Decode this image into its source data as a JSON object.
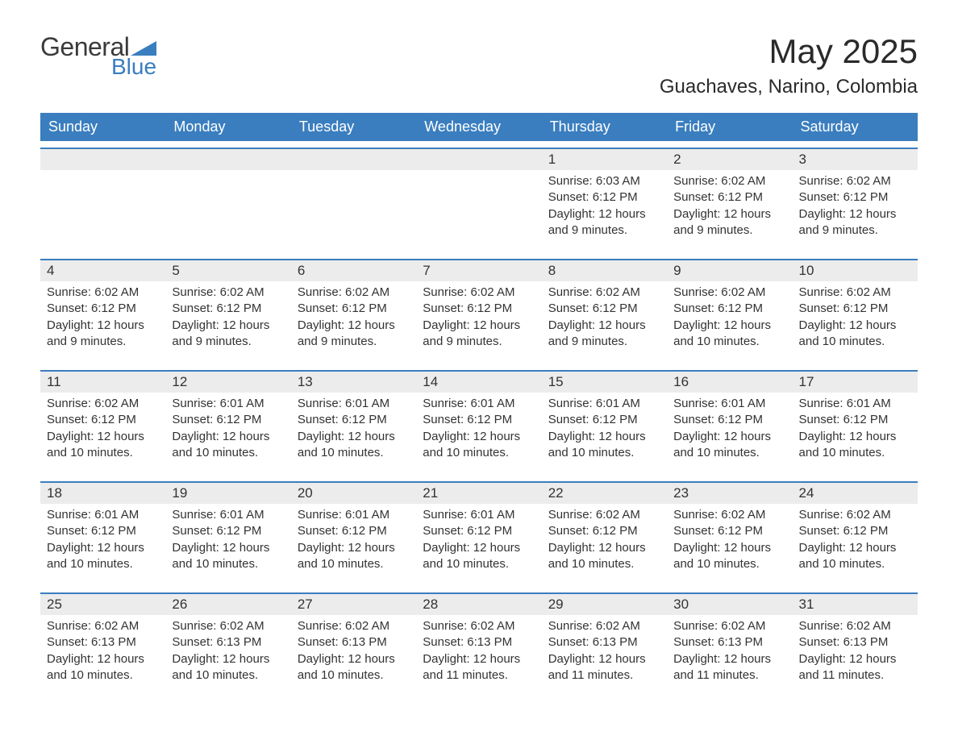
{
  "brand": {
    "text_general": "General",
    "text_blue": "Blue",
    "shape_color": "#3a7ebf"
  },
  "header": {
    "month_title": "May 2025",
    "location": "Guachaves, Narino, Colombia"
  },
  "styling": {
    "header_bg": "#3a7ebf",
    "header_text": "#ffffff",
    "day_number_bg": "#ececec",
    "row_border": "#3a7ebf",
    "body_text": "#333333",
    "page_bg": "#ffffff",
    "title_fontsize": 42,
    "location_fontsize": 24,
    "weekday_fontsize": 18,
    "detail_fontsize": 15
  },
  "weekdays": [
    "Sunday",
    "Monday",
    "Tuesday",
    "Wednesday",
    "Thursday",
    "Friday",
    "Saturday"
  ],
  "weeks": [
    [
      {
        "day": "",
        "sunrise": "",
        "sunset": "",
        "daylight": ""
      },
      {
        "day": "",
        "sunrise": "",
        "sunset": "",
        "daylight": ""
      },
      {
        "day": "",
        "sunrise": "",
        "sunset": "",
        "daylight": ""
      },
      {
        "day": "",
        "sunrise": "",
        "sunset": "",
        "daylight": ""
      },
      {
        "day": "1",
        "sunrise": "Sunrise: 6:03 AM",
        "sunset": "Sunset: 6:12 PM",
        "daylight": "Daylight: 12 hours and 9 minutes."
      },
      {
        "day": "2",
        "sunrise": "Sunrise: 6:02 AM",
        "sunset": "Sunset: 6:12 PM",
        "daylight": "Daylight: 12 hours and 9 minutes."
      },
      {
        "day": "3",
        "sunrise": "Sunrise: 6:02 AM",
        "sunset": "Sunset: 6:12 PM",
        "daylight": "Daylight: 12 hours and 9 minutes."
      }
    ],
    [
      {
        "day": "4",
        "sunrise": "Sunrise: 6:02 AM",
        "sunset": "Sunset: 6:12 PM",
        "daylight": "Daylight: 12 hours and 9 minutes."
      },
      {
        "day": "5",
        "sunrise": "Sunrise: 6:02 AM",
        "sunset": "Sunset: 6:12 PM",
        "daylight": "Daylight: 12 hours and 9 minutes."
      },
      {
        "day": "6",
        "sunrise": "Sunrise: 6:02 AM",
        "sunset": "Sunset: 6:12 PM",
        "daylight": "Daylight: 12 hours and 9 minutes."
      },
      {
        "day": "7",
        "sunrise": "Sunrise: 6:02 AM",
        "sunset": "Sunset: 6:12 PM",
        "daylight": "Daylight: 12 hours and 9 minutes."
      },
      {
        "day": "8",
        "sunrise": "Sunrise: 6:02 AM",
        "sunset": "Sunset: 6:12 PM",
        "daylight": "Daylight: 12 hours and 9 minutes."
      },
      {
        "day": "9",
        "sunrise": "Sunrise: 6:02 AM",
        "sunset": "Sunset: 6:12 PM",
        "daylight": "Daylight: 12 hours and 10 minutes."
      },
      {
        "day": "10",
        "sunrise": "Sunrise: 6:02 AM",
        "sunset": "Sunset: 6:12 PM",
        "daylight": "Daylight: 12 hours and 10 minutes."
      }
    ],
    [
      {
        "day": "11",
        "sunrise": "Sunrise: 6:02 AM",
        "sunset": "Sunset: 6:12 PM",
        "daylight": "Daylight: 12 hours and 10 minutes."
      },
      {
        "day": "12",
        "sunrise": "Sunrise: 6:01 AM",
        "sunset": "Sunset: 6:12 PM",
        "daylight": "Daylight: 12 hours and 10 minutes."
      },
      {
        "day": "13",
        "sunrise": "Sunrise: 6:01 AM",
        "sunset": "Sunset: 6:12 PM",
        "daylight": "Daylight: 12 hours and 10 minutes."
      },
      {
        "day": "14",
        "sunrise": "Sunrise: 6:01 AM",
        "sunset": "Sunset: 6:12 PM",
        "daylight": "Daylight: 12 hours and 10 minutes."
      },
      {
        "day": "15",
        "sunrise": "Sunrise: 6:01 AM",
        "sunset": "Sunset: 6:12 PM",
        "daylight": "Daylight: 12 hours and 10 minutes."
      },
      {
        "day": "16",
        "sunrise": "Sunrise: 6:01 AM",
        "sunset": "Sunset: 6:12 PM",
        "daylight": "Daylight: 12 hours and 10 minutes."
      },
      {
        "day": "17",
        "sunrise": "Sunrise: 6:01 AM",
        "sunset": "Sunset: 6:12 PM",
        "daylight": "Daylight: 12 hours and 10 minutes."
      }
    ],
    [
      {
        "day": "18",
        "sunrise": "Sunrise: 6:01 AM",
        "sunset": "Sunset: 6:12 PM",
        "daylight": "Daylight: 12 hours and 10 minutes."
      },
      {
        "day": "19",
        "sunrise": "Sunrise: 6:01 AM",
        "sunset": "Sunset: 6:12 PM",
        "daylight": "Daylight: 12 hours and 10 minutes."
      },
      {
        "day": "20",
        "sunrise": "Sunrise: 6:01 AM",
        "sunset": "Sunset: 6:12 PM",
        "daylight": "Daylight: 12 hours and 10 minutes."
      },
      {
        "day": "21",
        "sunrise": "Sunrise: 6:01 AM",
        "sunset": "Sunset: 6:12 PM",
        "daylight": "Daylight: 12 hours and 10 minutes."
      },
      {
        "day": "22",
        "sunrise": "Sunrise: 6:02 AM",
        "sunset": "Sunset: 6:12 PM",
        "daylight": "Daylight: 12 hours and 10 minutes."
      },
      {
        "day": "23",
        "sunrise": "Sunrise: 6:02 AM",
        "sunset": "Sunset: 6:12 PM",
        "daylight": "Daylight: 12 hours and 10 minutes."
      },
      {
        "day": "24",
        "sunrise": "Sunrise: 6:02 AM",
        "sunset": "Sunset: 6:12 PM",
        "daylight": "Daylight: 12 hours and 10 minutes."
      }
    ],
    [
      {
        "day": "25",
        "sunrise": "Sunrise: 6:02 AM",
        "sunset": "Sunset: 6:13 PM",
        "daylight": "Daylight: 12 hours and 10 minutes."
      },
      {
        "day": "26",
        "sunrise": "Sunrise: 6:02 AM",
        "sunset": "Sunset: 6:13 PM",
        "daylight": "Daylight: 12 hours and 10 minutes."
      },
      {
        "day": "27",
        "sunrise": "Sunrise: 6:02 AM",
        "sunset": "Sunset: 6:13 PM",
        "daylight": "Daylight: 12 hours and 10 minutes."
      },
      {
        "day": "28",
        "sunrise": "Sunrise: 6:02 AM",
        "sunset": "Sunset: 6:13 PM",
        "daylight": "Daylight: 12 hours and 11 minutes."
      },
      {
        "day": "29",
        "sunrise": "Sunrise: 6:02 AM",
        "sunset": "Sunset: 6:13 PM",
        "daylight": "Daylight: 12 hours and 11 minutes."
      },
      {
        "day": "30",
        "sunrise": "Sunrise: 6:02 AM",
        "sunset": "Sunset: 6:13 PM",
        "daylight": "Daylight: 12 hours and 11 minutes."
      },
      {
        "day": "31",
        "sunrise": "Sunrise: 6:02 AM",
        "sunset": "Sunset: 6:13 PM",
        "daylight": "Daylight: 12 hours and 11 minutes."
      }
    ]
  ]
}
